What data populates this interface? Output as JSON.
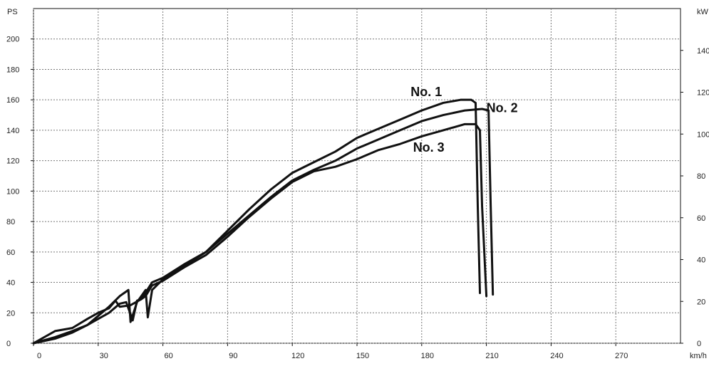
{
  "chart_data": {
    "type": "line",
    "title": "",
    "xlabel": "km/h",
    "ylabel_left": "PS",
    "ylabel_right": "kW",
    "xlim": [
      0,
      300
    ],
    "ylim": [
      0,
      220
    ],
    "y2lim": [
      0,
      160
    ],
    "grid": true,
    "x_ticks": [
      0,
      30,
      60,
      90,
      120,
      150,
      180,
      210,
      240,
      270
    ],
    "y_ticks": [
      0,
      20,
      40,
      60,
      80,
      100,
      120,
      140,
      160,
      180,
      200
    ],
    "y2_ticks": [
      0,
      20,
      40,
      60,
      80,
      100,
      120,
      140
    ],
    "series": [
      {
        "name": "No. 1",
        "x": [
          0,
          10,
          18,
          25,
          30,
          35,
          40,
          43,
          46,
          48,
          50,
          55,
          60,
          70,
          80,
          90,
          100,
          110,
          120,
          130,
          140,
          150,
          160,
          170,
          180,
          190,
          198,
          203,
          205,
          206,
          207
        ],
        "y": [
          0,
          4,
          8,
          12,
          16,
          20,
          26,
          27,
          15,
          28,
          29,
          40,
          43,
          52,
          60,
          74,
          88,
          101,
          112,
          119,
          126,
          135,
          141,
          147,
          153,
          158,
          160,
          160,
          158,
          90,
          33
        ]
      },
      {
        "name": "No. 2",
        "x": [
          0,
          10,
          18,
          25,
          30,
          35,
          40,
          44,
          45,
          48,
          52,
          53,
          55,
          60,
          70,
          80,
          90,
          100,
          110,
          120,
          130,
          140,
          150,
          160,
          170,
          180,
          190,
          200,
          208,
          211,
          212,
          213
        ],
        "y": [
          0,
          3,
          7,
          12,
          18,
          24,
          31,
          35,
          14,
          27,
          35,
          17,
          35,
          42,
          51,
          60,
          72,
          84,
          96,
          107,
          114,
          120,
          128,
          134,
          140,
          146,
          150,
          153,
          154,
          153,
          90,
          32
        ]
      },
      {
        "name": "No. 3",
        "x": [
          0,
          10,
          18,
          25,
          30,
          35,
          38,
          40,
          45,
          50,
          52,
          55,
          60,
          70,
          80,
          90,
          100,
          110,
          120,
          130,
          140,
          150,
          160,
          170,
          180,
          190,
          200,
          205,
          207,
          208,
          210
        ],
        "y": [
          0,
          8,
          10,
          16,
          20,
          23,
          28,
          24,
          25,
          29,
          31,
          38,
          41,
          50,
          58,
          70,
          83,
          95,
          106,
          113,
          116,
          121,
          127,
          131,
          136,
          140,
          144,
          144,
          140,
          90,
          31
        ]
      }
    ]
  }
}
